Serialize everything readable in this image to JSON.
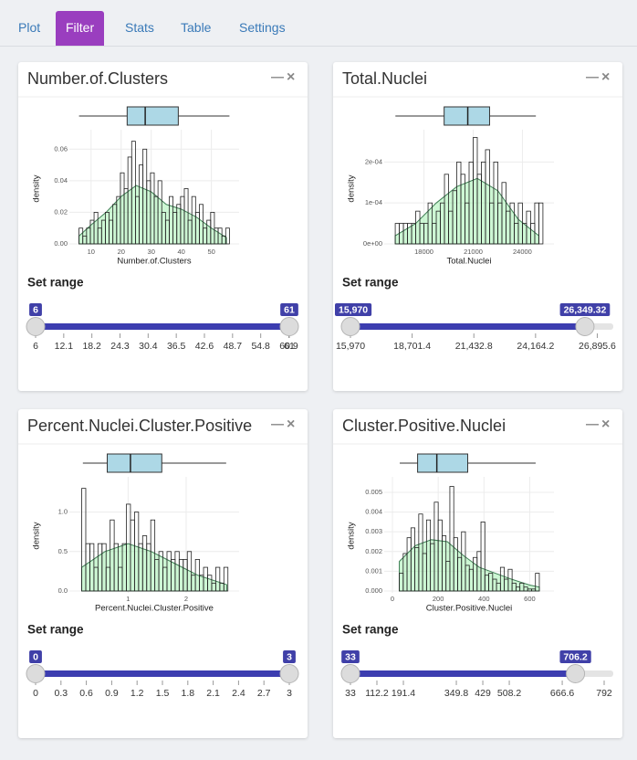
{
  "tabs": {
    "items": [
      "Plot",
      "Filter",
      "Stats",
      "Table",
      "Settings"
    ],
    "active": "Filter"
  },
  "panels": [
    {
      "title": "Number.of.Clusters",
      "range_label": "Set range",
      "chart_data": {
        "type": "histogram",
        "x_label": "Number.of.Clusters",
        "y_label": "density",
        "bins": [
          6,
          7.25,
          8.5,
          9.75,
          11,
          12.25,
          13.5,
          14.75,
          16,
          17.25,
          18.5,
          19.75,
          21,
          22.25,
          23.5,
          24.75,
          26,
          27.25,
          28.5,
          29.75,
          31,
          32.25,
          33.5,
          34.75,
          36,
          37.25,
          38.5,
          39.75,
          41,
          42.25,
          43.5,
          44.75,
          46,
          47.25,
          48.5,
          49.75,
          51,
          52.25,
          53.5,
          54.75,
          56
        ],
        "counts": [
          0.01,
          0.005,
          0.01,
          0.015,
          0.02,
          0.01,
          0.015,
          0.02,
          0.015,
          0.025,
          0.03,
          0.045,
          0.035,
          0.055,
          0.065,
          0.03,
          0.05,
          0.06,
          0.04,
          0.045,
          0.03,
          0.04,
          0.02,
          0.015,
          0.03,
          0.02,
          0.025,
          0.03,
          0.035,
          0.015,
          0.03,
          0.02,
          0.025,
          0.01,
          0.015,
          0.02,
          0.01,
          0.01,
          0.005,
          0.01
        ],
        "density": {
          "x": [
            6,
            10,
            15,
            20,
            25,
            30,
            35,
            40,
            45,
            50,
            55
          ],
          "y": [
            0.005,
            0.012,
            0.02,
            0.03,
            0.037,
            0.033,
            0.025,
            0.022,
            0.017,
            0.01,
            0.004
          ]
        },
        "box": {
          "min": 6,
          "q1": 22,
          "median": 28,
          "q3": 39,
          "max": 56
        },
        "xlim": [
          4,
          58
        ],
        "ylim": [
          0,
          0.07
        ],
        "xticks": [
          10,
          20,
          30,
          40,
          50
        ],
        "yticks": [
          {
            "value": 0,
            "label": "0.00"
          },
          {
            "value": 0.02,
            "label": "0.02"
          },
          {
            "value": 0.04,
            "label": "0.04"
          },
          {
            "value": 0.06,
            "label": "0.06"
          }
        ]
      },
      "slider": {
        "min": 6,
        "max": 61,
        "from": 6,
        "to": 61,
        "ticks": [
          6,
          12.1,
          18.2,
          24.3,
          30.4,
          36.5,
          42.6,
          48.7,
          54.8,
          60.9,
          61
        ]
      }
    },
    {
      "title": "Total.Nuclei",
      "range_label": "Set range",
      "chart_data": {
        "type": "histogram",
        "x_label": "Total.Nuclei",
        "y_label": "density",
        "bins": [
          16250,
          16500,
          16750,
          17000,
          17250,
          17500,
          17750,
          18000,
          18250,
          18500,
          18750,
          19000,
          19250,
          19500,
          19750,
          20000,
          20250,
          20500,
          20750,
          21000,
          21250,
          21500,
          21750,
          22000,
          22250,
          22500,
          22750,
          23000,
          23250,
          23500,
          23750,
          24000,
          24250,
          24500,
          24750,
          25000,
          25250
        ],
        "counts": [
          5e-05,
          5e-05,
          5e-05,
          5e-05,
          5e-05,
          8e-05,
          5e-05,
          5e-05,
          0.0001,
          5e-05,
          8e-05,
          0.0001,
          0.00017,
          8e-05,
          0.00013,
          0.0002,
          0.00017,
          0.0001,
          0.0002,
          0.00026,
          0.00017,
          0.0002,
          0.00023,
          0.0001,
          0.0002,
          0.0001,
          0.00015,
          8e-05,
          0.0001,
          5e-05,
          0.0001,
          5e-05,
          8e-05,
          5e-05,
          0.0001,
          0.0001
        ],
        "density": {
          "x": [
            16250,
            17500,
            18750,
            20000,
            21250,
            22500,
            23750,
            25000
          ],
          "y": [
            2e-05,
            5e-05,
            0.0001,
            0.00014,
            0.00016,
            0.00013,
            6e-05,
            2e-05
          ]
        },
        "box": {
          "min": 16260,
          "q1": 19230,
          "median": 20670,
          "q3": 22000,
          "max": 24820
        },
        "xlim": [
          15800,
          25700
        ],
        "ylim": [
          0,
          0.00027
        ],
        "xticks": [
          18000,
          21000,
          24000
        ],
        "yticks": [
          {
            "value": 0,
            "label": "0e+00"
          },
          {
            "value": 0.0001,
            "label": "1e-04"
          },
          {
            "value": 0.0002,
            "label": "2e-04"
          }
        ]
      },
      "slider": {
        "min": 15970,
        "max": 27200,
        "from": {
          "value": 15970,
          "label": "15,970"
        },
        "to": {
          "value": 26349.32,
          "label": "26,349.32"
        },
        "ticks": [
          {
            "value": 15970,
            "label": "15,970"
          },
          {
            "value": 18701.4,
            "label": "18,701.4"
          },
          {
            "value": 21432.8,
            "label": "21,432.8"
          },
          {
            "value": 24164.2,
            "label": "24,164.2"
          },
          {
            "value": 26895.6,
            "label": "26,895.6"
          }
        ]
      }
    },
    {
      "title": "Percent.Nuclei.Cluster.Positive",
      "range_label": "Set range",
      "chart_data": {
        "type": "histogram",
        "x_label": "Percent.Nuclei.Cluster.Positive",
        "y_label": "density",
        "bins": [
          0.2,
          0.27,
          0.34,
          0.41,
          0.48,
          0.55,
          0.62,
          0.69,
          0.76,
          0.83,
          0.9,
          0.97,
          1.04,
          1.11,
          1.18,
          1.25,
          1.32,
          1.39,
          1.46,
          1.53,
          1.6,
          1.67,
          1.74,
          1.81,
          1.88,
          1.95,
          2.02,
          2.09,
          2.16,
          2.23,
          2.3,
          2.37,
          2.44,
          2.51,
          2.58,
          2.65,
          2.72
        ],
        "counts": [
          1.3,
          0.6,
          0.6,
          0.3,
          0.6,
          0.6,
          0.3,
          0.9,
          0.6,
          0.3,
          0.6,
          1.1,
          0.9,
          1.0,
          0.6,
          0.7,
          0.6,
          0.9,
          0.4,
          0.5,
          0.3,
          0.5,
          0.4,
          0.5,
          0.4,
          0.4,
          0.5,
          0.2,
          0.4,
          0.2,
          0.3,
          0.2,
          0.1,
          0.3,
          0.1,
          0.3
        ],
        "density": {
          "x": [
            0.2,
            0.6,
            1.0,
            1.4,
            1.8,
            2.2,
            2.7
          ],
          "y": [
            0.3,
            0.5,
            0.6,
            0.5,
            0.35,
            0.2,
            0.08
          ]
        },
        "box": {
          "min": 0.22,
          "q1": 0.64,
          "median": 1.04,
          "q3": 1.58,
          "max": 2.69
        },
        "xlim": [
          0.05,
          2.85
        ],
        "ylim": [
          0,
          1.4
        ],
        "xticks": [
          1,
          2
        ],
        "yticks": [
          {
            "value": 0,
            "label": "0.0"
          },
          {
            "value": 0.5,
            "label": "0.5"
          },
          {
            "value": 1,
            "label": "1.0"
          }
        ]
      },
      "slider": {
        "min": 0,
        "max": 3,
        "from": 0,
        "to": 3,
        "ticks": [
          0,
          0.3,
          0.6,
          0.9,
          1.2,
          1.5,
          1.8,
          2.1,
          2.4,
          2.7,
          3
        ]
      }
    },
    {
      "title": "Cluster.Positive.Nuclei",
      "range_label": "Set range",
      "chart_data": {
        "type": "histogram",
        "x_label": "Cluster.Positive.Nuclei",
        "y_label": "density",
        "bins": [
          30,
          47,
          64,
          81,
          98,
          115,
          132,
          149,
          166,
          183,
          200,
          217,
          234,
          251,
          268,
          285,
          302,
          319,
          336,
          353,
          370,
          387,
          404,
          421,
          438,
          455,
          472,
          489,
          506,
          523,
          540,
          557,
          574,
          591,
          608,
          625,
          642
        ],
        "counts": [
          0.0009,
          0.0019,
          0.0027,
          0.0032,
          0.0022,
          0.0039,
          0.0019,
          0.0036,
          0.0024,
          0.0045,
          0.0036,
          0.0028,
          0.0015,
          0.0053,
          0.0027,
          0.0017,
          0.003,
          0.0013,
          0.0011,
          0.0017,
          0.002,
          0.0035,
          0.0008,
          0.0009,
          0.0006,
          0.0004,
          0.0012,
          0.0006,
          0.0011,
          0.0004,
          0.0002,
          0.0004,
          0.0002,
          0.0001,
          0.0001,
          0.0009
        ],
        "density": {
          "x": [
            30,
            100,
            170,
            240,
            310,
            380,
            450,
            520,
            600,
            642
          ],
          "y": [
            0.0015,
            0.0023,
            0.0026,
            0.0025,
            0.0018,
            0.0012,
            0.0009,
            0.0006,
            0.0003,
            0.0002
          ]
        },
        "box": {
          "min": 32,
          "q1": 110,
          "median": 194,
          "q3": 329,
          "max": 626
        },
        "xlim": [
          -20,
          690
        ],
        "ylim": [
          0,
          0.0056
        ],
        "xticks": [
          0,
          200,
          400,
          600
        ],
        "yticks": [
          {
            "value": 0,
            "label": "0.000"
          },
          {
            "value": 0.001,
            "label": "0.001"
          },
          {
            "value": 0.002,
            "label": "0.002"
          },
          {
            "value": 0.003,
            "label": "0.003"
          },
          {
            "value": 0.004,
            "label": "0.004"
          },
          {
            "value": 0.005,
            "label": "0.005"
          }
        ]
      },
      "slider": {
        "min": 33,
        "max": 792,
        "from": 33,
        "to": 706.2,
        "ticks": [
          33,
          112.2,
          191.4,
          349.8,
          429,
          508.2,
          666.6,
          792
        ]
      }
    }
  ]
}
